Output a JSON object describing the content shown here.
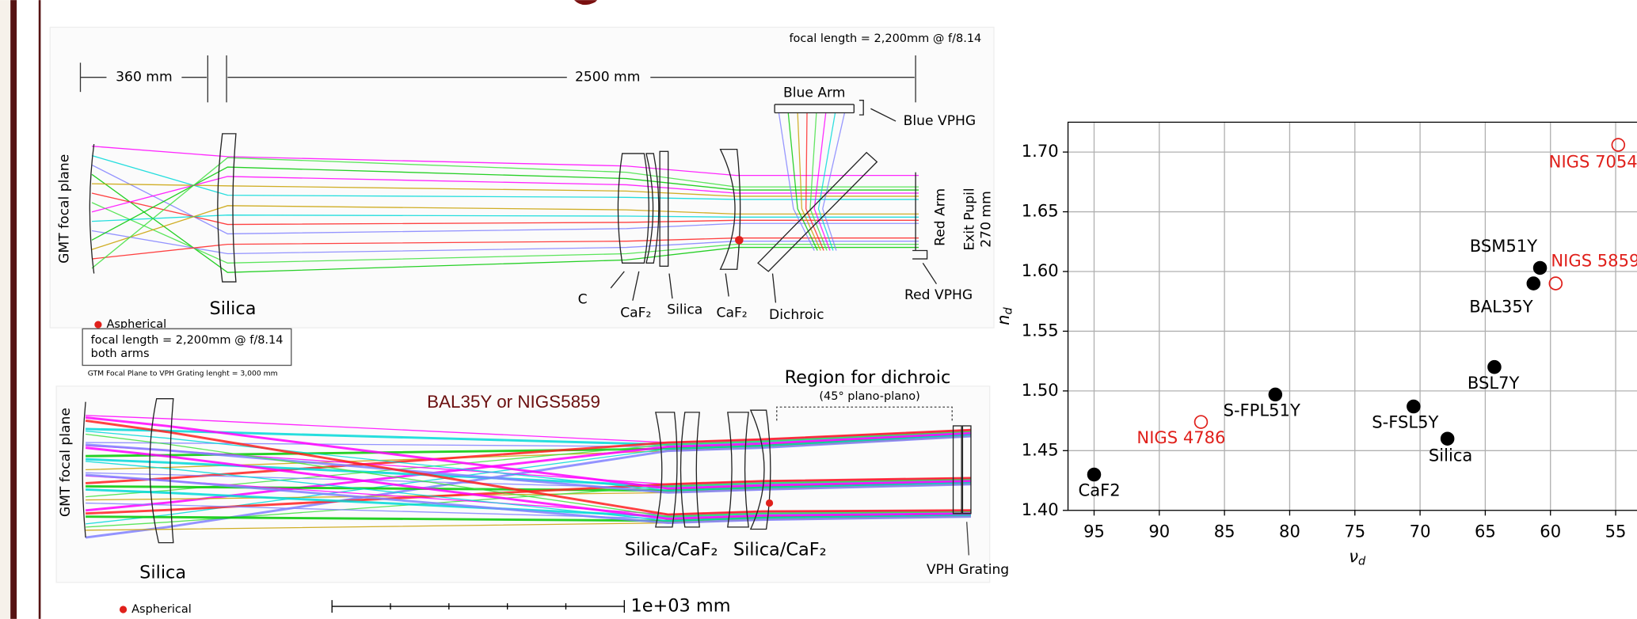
{
  "top_diagram": {
    "focal_note": "focal length = 2,200mm @ f/8.14",
    "dim_left": "360 mm",
    "dim_right": "2500 mm",
    "blue_arm": "Blue Arm",
    "blue_vphg": "Blue VPHG",
    "y_label": "GMT focal plane",
    "red_arm": "Red Arm",
    "exit_pupil": [
      "Exit Pupil",
      "270 mm"
    ],
    "lens_label": "Silica",
    "legend": "Aspherical",
    "components": [
      "C",
      "CaF₂",
      "Silica",
      "CaF₂",
      "Dichroic"
    ],
    "red_vphg": "Red VPHG",
    "box": [
      "focal length = 2,200mm @ f/8.14",
      "both arms"
    ],
    "length_note": "GTM Focal Plane to VPH Grating lenght  = 3,000 mm"
  },
  "bottom_diagram": {
    "glass_note": "BAL35Y or NIGS5859",
    "region": "Region for dichroic",
    "region_note": "(45° plano-plano)",
    "y_label": "GMT focal plane",
    "components": [
      "Silica/CaF₂",
      "Silica/CaF₂"
    ],
    "lens_label": "Silica",
    "grating": "VPH Grating",
    "legend": "Aspherical",
    "scale_bar": "1e+03 mm"
  },
  "chart_data": {
    "type": "scatter",
    "xlabel": {
      "main": "ν",
      "sub": "d"
    },
    "ylabel": {
      "main": "n",
      "sub": "d"
    },
    "xlim": [
      97,
      50
    ],
    "ylim": [
      1.4,
      1.725
    ],
    "xticks": [
      95,
      90,
      85,
      80,
      75,
      70,
      65,
      60,
      55
    ],
    "yticks": [
      {
        "value": 1.7,
        "label": "1.70"
      },
      1.65,
      {
        "value": 1.6,
        "label": "1.60"
      },
      1.55,
      {
        "value": 1.5,
        "label": "1.50"
      },
      1.45,
      {
        "value": 1.4,
        "label": "1.40"
      }
    ],
    "grid": true,
    "series": [
      {
        "color": "#000000",
        "marker": "filled",
        "x": [
          95,
          81.1,
          70.5,
          67.9,
          64.3,
          61.3,
          60.8
        ],
        "values": [
          1.43,
          1.497,
          1.487,
          1.46,
          1.52,
          1.59,
          1.603
        ],
        "labels": [
          "CaF2",
          "S-FPL51Y",
          "S-FSL5Y",
          "Silica",
          "BSL7Y",
          "BAL35Y",
          "BSM51Y"
        ]
      },
      {
        "color": "#e0201b",
        "marker": "open",
        "x": [
          86.8,
          59.6,
          54.8
        ],
        "values": [
          1.474,
          1.59,
          1.706
        ],
        "labels": [
          "NIGS 4786",
          "NIGS 5859",
          "NIGS 7054"
        ]
      }
    ]
  }
}
